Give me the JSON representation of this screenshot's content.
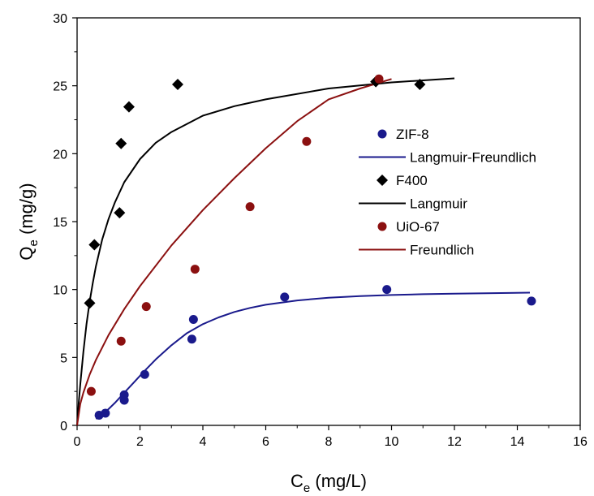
{
  "chart_data": {
    "type": "scatter",
    "title": "",
    "xlabel": {
      "main": "C",
      "sub": "e",
      "unit": " (mg/L)"
    },
    "ylabel": {
      "main": "Q",
      "sub": "e",
      "unit": " (mg/g)"
    },
    "xlim": [
      0,
      16
    ],
    "ylim": [
      0,
      30
    ],
    "xticks": [
      "0",
      "2",
      "4",
      "6",
      "8",
      "10",
      "12",
      "14",
      "16"
    ],
    "yticks": [
      "0",
      "5",
      "10",
      "15",
      "20",
      "25",
      "30"
    ],
    "grid": false,
    "legend_position": "right",
    "series": [
      {
        "name": "ZIF-8",
        "marker": "circle",
        "color": "#1a1a8c",
        "x": [
          0.7,
          0.9,
          1.5,
          1.5,
          2.15,
          3.7,
          3.65,
          6.6,
          9.85,
          14.45
        ],
        "y": [
          0.75,
          0.9,
          2.25,
          1.85,
          3.75,
          7.8,
          6.35,
          9.45,
          10.0,
          9.15
        ]
      },
      {
        "name": "Langmuir-Freundlich",
        "marker": "line",
        "color": "#1a1a8c",
        "x": [
          0.6,
          0.8,
          1.0,
          1.2,
          1.5,
          1.8,
          2.1,
          2.5,
          3.0,
          3.5,
          4.0,
          4.5,
          5.0,
          5.5,
          6.0,
          7.0,
          8.0,
          9.0,
          10.0,
          11.0,
          12.0,
          13.0,
          14.4
        ],
        "y": [
          0.48,
          0.8,
          1.2,
          1.65,
          2.4,
          3.15,
          3.9,
          4.85,
          5.9,
          6.8,
          7.45,
          7.95,
          8.35,
          8.65,
          8.88,
          9.2,
          9.4,
          9.52,
          9.6,
          9.66,
          9.7,
          9.73,
          9.77
        ]
      },
      {
        "name": "F400",
        "marker": "diamond",
        "color": "#000000",
        "x": [
          0.4,
          0.55,
          1.35,
          1.4,
          1.65,
          3.2,
          9.5,
          10.9
        ],
        "y": [
          9.0,
          13.3,
          15.65,
          20.75,
          23.45,
          25.1,
          25.3,
          25.1
        ]
      },
      {
        "name": "Langmuir",
        "marker": "line",
        "color": "#000000",
        "x": [
          0.0,
          0.05,
          0.1,
          0.2,
          0.3,
          0.4,
          0.5,
          0.6,
          0.8,
          1.0,
          1.2,
          1.5,
          2.0,
          2.5,
          3.0,
          4.0,
          5.0,
          6.0,
          8.0,
          10.0,
          12.0
        ],
        "y": [
          0.0,
          1.58,
          3.0,
          5.44,
          7.45,
          9.12,
          10.5,
          11.74,
          13.7,
          15.2,
          16.4,
          17.9,
          19.6,
          20.8,
          21.6,
          22.8,
          23.5,
          24.0,
          24.8,
          25.25,
          25.55
        ]
      },
      {
        "name": "UiO-67",
        "marker": "circle",
        "color": "#8b1010",
        "x": [
          0.45,
          1.4,
          2.2,
          3.75,
          5.5,
          7.3,
          9.6
        ],
        "y": [
          2.5,
          6.2,
          8.75,
          11.5,
          16.1,
          20.9,
          25.5
        ]
      },
      {
        "name": "Freundlich",
        "marker": "line",
        "color": "#8b1010",
        "x": [
          0.0,
          0.1,
          0.2,
          0.4,
          0.6,
          1.0,
          1.5,
          2.0,
          3.0,
          4.0,
          5.0,
          6.0,
          7.0,
          8.0,
          9.0,
          10.0
        ],
        "y": [
          0.0,
          1.57,
          2.42,
          3.74,
          4.83,
          6.65,
          8.56,
          10.25,
          13.25,
          15.85,
          18.2,
          20.4,
          22.4,
          24.0,
          24.8,
          25.5
        ]
      }
    ]
  }
}
